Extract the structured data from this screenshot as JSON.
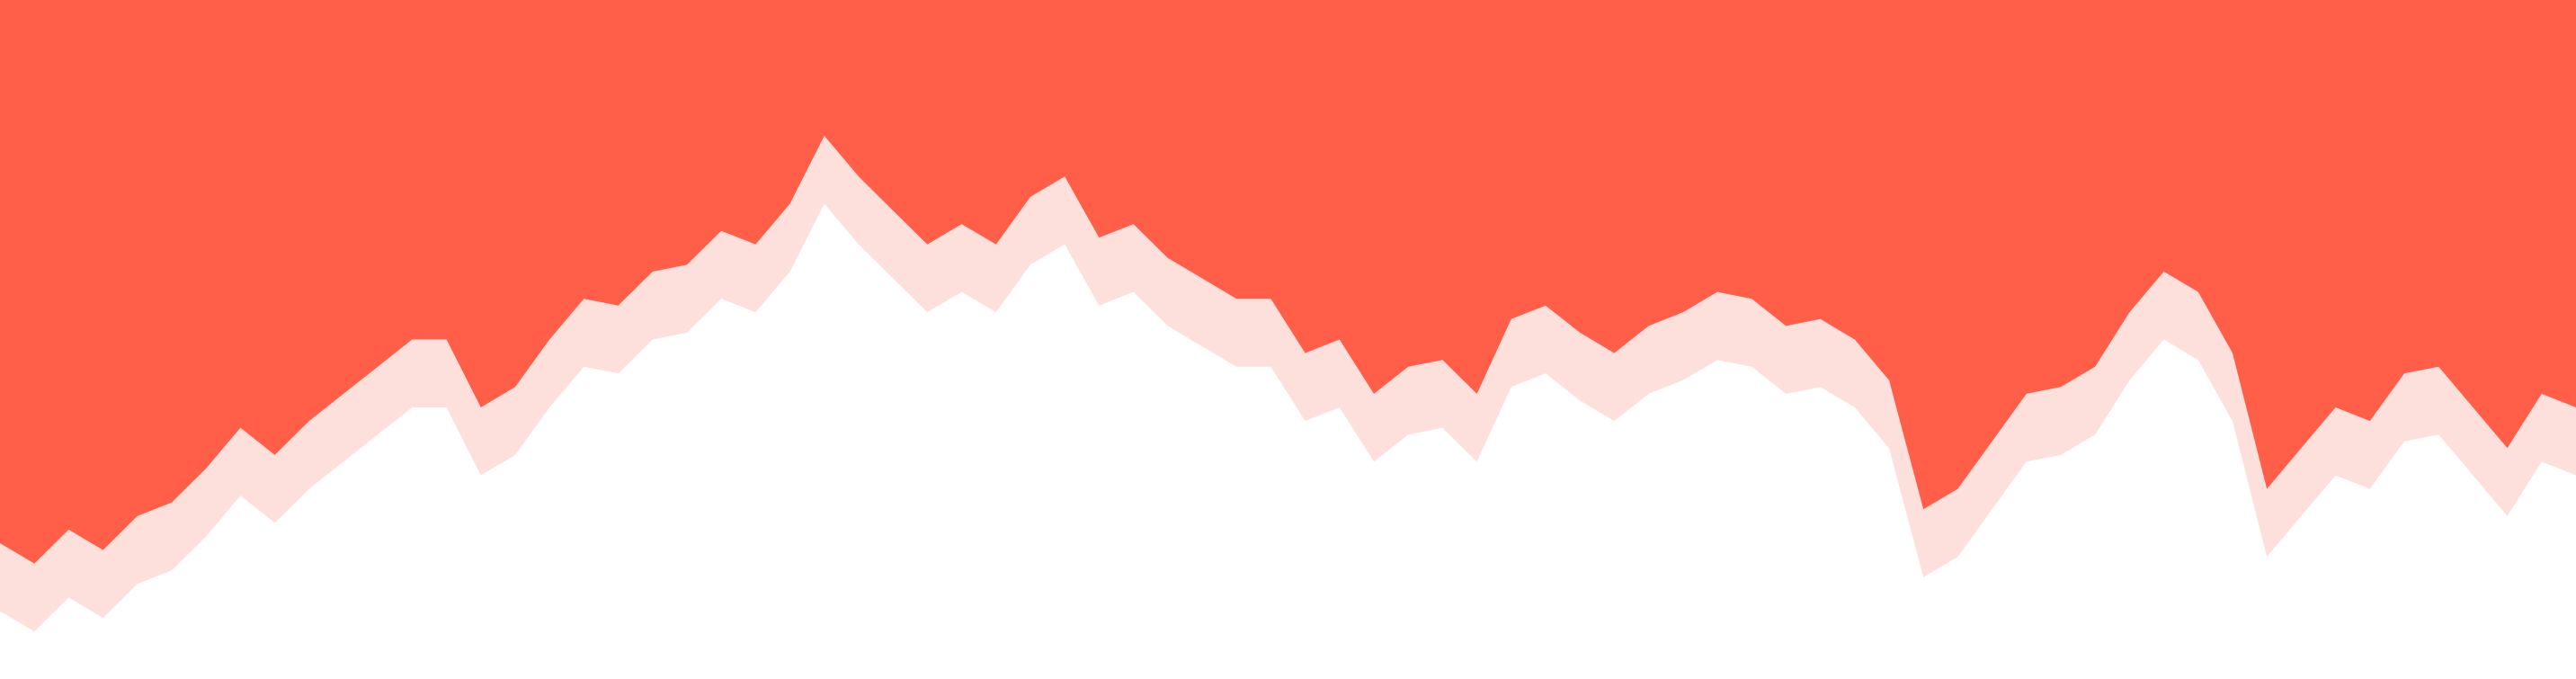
{
  "chart_data": {
    "type": "area",
    "orientation": "hanging-from-top",
    "grid": false,
    "legend": "none",
    "ylim": [
      0,
      100
    ],
    "colors": {
      "primary": "#ff5f48",
      "secondary": "#fde0dc",
      "background": "#ffffff"
    },
    "x": [
      0,
      4,
      8,
      12,
      16,
      20,
      24,
      28,
      32,
      36,
      40,
      44,
      48,
      52,
      56,
      60,
      64,
      68,
      72,
      76,
      80,
      84,
      88,
      92,
      96,
      100,
      104,
      108,
      112,
      116,
      120,
      124,
      128,
      132,
      136,
      140,
      144,
      148,
      152,
      156,
      160,
      164,
      168,
      172,
      176,
      180,
      184,
      188,
      192,
      196,
      200,
      204,
      208,
      212,
      216,
      220,
      224,
      228,
      232,
      236,
      240,
      244,
      248,
      252,
      256,
      260,
      264,
      268,
      272,
      276,
      280,
      284,
      288,
      292,
      296,
      300
    ],
    "series": [
      {
        "values": [
          80,
          83,
          78,
          81,
          76,
          74,
          69,
          63,
          67,
          62,
          58,
          54,
          50,
          50,
          60,
          57,
          50,
          44,
          45,
          40,
          39,
          34,
          36,
          30,
          20,
          26,
          31,
          36,
          33,
          36,
          29,
          26,
          35,
          33,
          38,
          41,
          44,
          44,
          52,
          50,
          58,
          54,
          53,
          58,
          47,
          45,
          49,
          52,
          48,
          46,
          43,
          44,
          48,
          47,
          50,
          56,
          75,
          72,
          65,
          58,
          57,
          54,
          46,
          40,
          43,
          52,
          72,
          66,
          60,
          62,
          55,
          54,
          60,
          66,
          58,
          60
        ]
      },
      {
        "values": [
          90,
          93,
          88,
          91,
          86,
          84,
          79,
          73,
          77,
          72,
          68,
          64,
          60,
          60,
          70,
          67,
          60,
          54,
          55,
          50,
          49,
          44,
          46,
          40,
          30,
          36,
          41,
          46,
          43,
          46,
          39,
          36,
          45,
          43,
          48,
          51,
          54,
          54,
          62,
          60,
          68,
          64,
          63,
          68,
          57,
          55,
          59,
          62,
          58,
          56,
          53,
          54,
          58,
          57,
          60,
          66,
          85,
          82,
          75,
          68,
          67,
          64,
          56,
          50,
          53,
          62,
          82,
          76,
          70,
          72,
          65,
          64,
          70,
          76,
          68,
          70
        ]
      }
    ]
  }
}
